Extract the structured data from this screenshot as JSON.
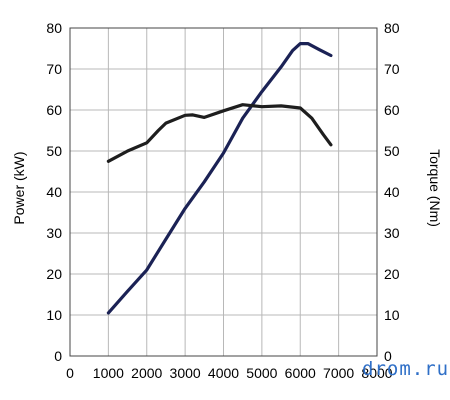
{
  "chart_data": {
    "type": "line",
    "xlim": [
      0,
      8000
    ],
    "x_ticks": [
      "0",
      "1000",
      "2000",
      "3000",
      "4000",
      "5000",
      "6000",
      "7000",
      "8000"
    ],
    "y_left": {
      "label": "Power (kW)",
      "lim": [
        0,
        80
      ],
      "ticks": [
        "0",
        "10",
        "20",
        "30",
        "40",
        "50",
        "60",
        "70",
        "80"
      ]
    },
    "y_right": {
      "label": "Torque (Nm)",
      "lim": [
        0,
        80
      ],
      "ticks": [
        "0",
        "10",
        "20",
        "30",
        "40",
        "50",
        "60",
        "70",
        "80"
      ]
    },
    "grid": true,
    "series": [
      {
        "axis": "left",
        "color": "#1b2255",
        "points": [
          [
            1000,
            10.5
          ],
          [
            1500,
            15.8
          ],
          [
            2000,
            21
          ],
          [
            2500,
            28.5
          ],
          [
            3000,
            36
          ],
          [
            3500,
            42.5
          ],
          [
            4000,
            49.5
          ],
          [
            4500,
            58
          ],
          [
            5000,
            64.5
          ],
          [
            5500,
            70.5
          ],
          [
            5800,
            74.5
          ],
          [
            6000,
            76.2
          ],
          [
            6200,
            76.2
          ],
          [
            6500,
            74.7
          ],
          [
            6800,
            73.3
          ]
        ]
      },
      {
        "axis": "right",
        "color": "#1e1e1e",
        "points": [
          [
            1000,
            47.5
          ],
          [
            1500,
            50
          ],
          [
            2000,
            52
          ],
          [
            2300,
            55
          ],
          [
            2500,
            56.8
          ],
          [
            3000,
            58.7
          ],
          [
            3200,
            58.8
          ],
          [
            3500,
            58.2
          ],
          [
            4000,
            59.8
          ],
          [
            4500,
            61.3
          ],
          [
            5000,
            60.8
          ],
          [
            5500,
            61
          ],
          [
            6000,
            60.5
          ],
          [
            6300,
            58
          ],
          [
            6600,
            54
          ],
          [
            6800,
            51.5
          ]
        ]
      }
    ]
  },
  "watermark": "drom.ru"
}
